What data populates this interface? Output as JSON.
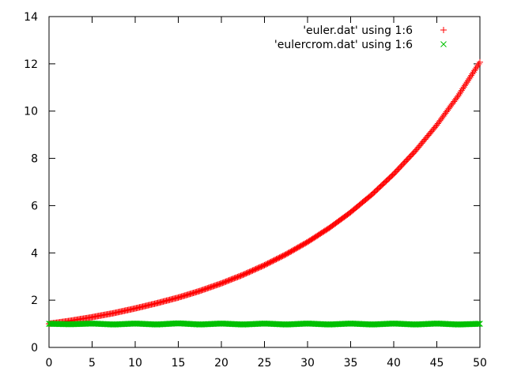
{
  "chart_data": {
    "type": "scatter",
    "title": "",
    "xlabel": "",
    "ylabel": "",
    "xlim": [
      0,
      50
    ],
    "ylim": [
      0,
      14
    ],
    "xticks": [
      "0",
      "5",
      "10",
      "15",
      "20",
      "25",
      "30",
      "35",
      "40",
      "45",
      "50"
    ],
    "yticks": [
      "0",
      "2",
      "4",
      "6",
      "8",
      "10",
      "12",
      "14"
    ],
    "legend_position": "top-right",
    "grid": false,
    "series": [
      {
        "name": "'euler.dat' using 1:6",
        "marker": "plus",
        "color": "#ff0000",
        "x": [
          0,
          2.5,
          5,
          7.5,
          10,
          12.5,
          15,
          17.5,
          20,
          22.5,
          25,
          27.5,
          30,
          32.5,
          35,
          37.5,
          40,
          42.5,
          45,
          47.5,
          50
        ],
        "y": [
          1.0,
          1.13,
          1.28,
          1.45,
          1.65,
          1.87,
          2.11,
          2.39,
          2.71,
          3.07,
          3.48,
          3.94,
          4.46,
          5.05,
          5.72,
          6.48,
          7.34,
          8.31,
          9.41,
          10.66,
          12.07
        ]
      },
      {
        "name": "'eulercrom.dat' using 1:6",
        "marker": "cross",
        "color": "#00c000",
        "x": [
          0,
          2.5,
          5,
          7.5,
          10,
          12.5,
          15,
          17.5,
          20,
          22.5,
          25,
          27.5,
          30,
          32.5,
          35,
          37.5,
          40,
          42.5,
          45,
          47.5,
          50
        ],
        "y": [
          1.0,
          0.98,
          1.01,
          0.97,
          1.01,
          0.97,
          1.02,
          0.97,
          1.01,
          0.97,
          1.01,
          0.97,
          1.01,
          0.97,
          1.01,
          0.97,
          1.01,
          0.97,
          1.01,
          0.97,
          1.0
        ]
      }
    ]
  }
}
